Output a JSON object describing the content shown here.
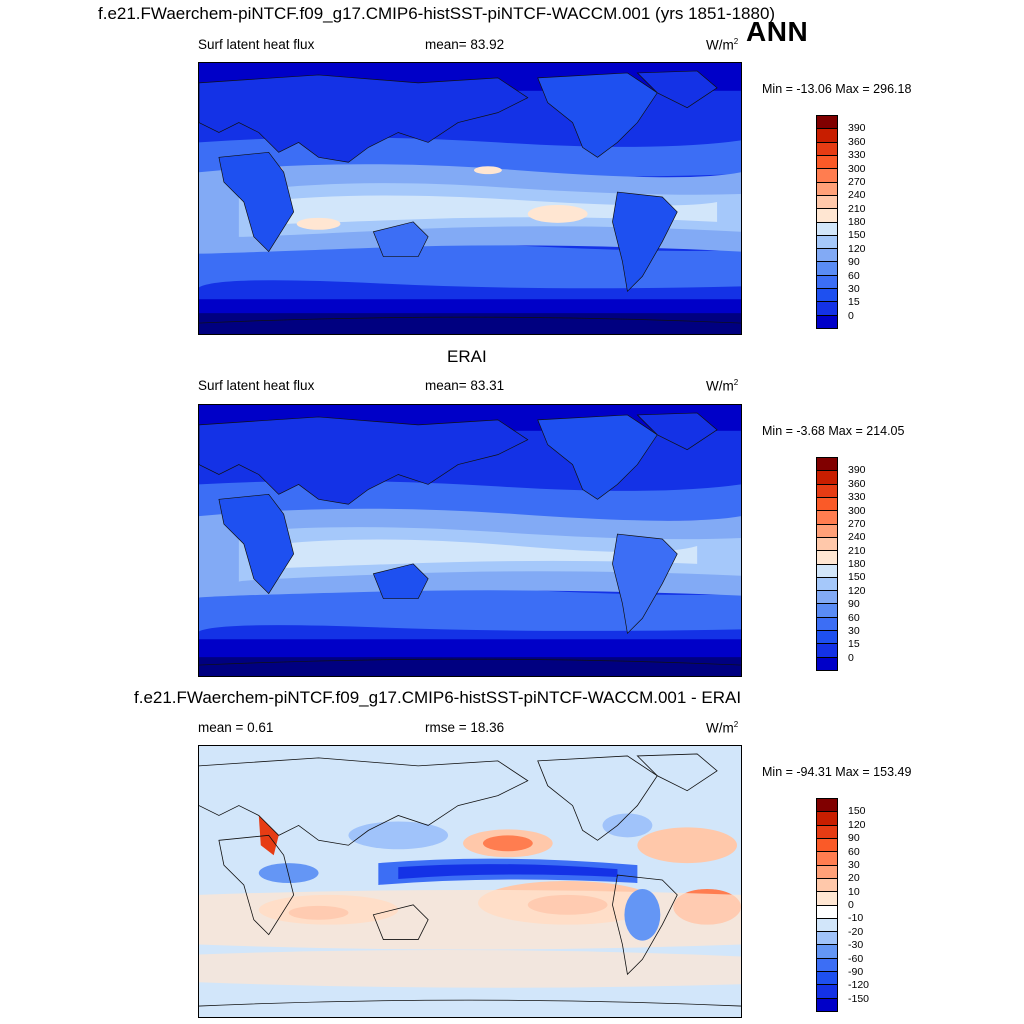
{
  "season": "ANN",
  "panels": [
    {
      "title": "f.e21.FWaerchem-piNTCF.f09_g17.CMIP6-histSST-piNTCF-WACCM.001 (yrs 1851-1880)",
      "left_label": "Surf latent heat flux",
      "stat_label": "mean=  83.92",
      "units_base": "W/m",
      "units_exp": "2",
      "minmax": "Min = -13.06 Max = 296.18",
      "colorbar": {
        "colors": [
          "#000080",
          "#0000c8",
          "#1432e6",
          "#1e50f0",
          "#3c6ef5",
          "#5a8cf5",
          "#82aaf5",
          "#a5c8fa",
          "#d2e6fa",
          "#ffe6d2",
          "#ffc8aa",
          "#ffa078",
          "#ff7d50",
          "#fa5a28",
          "#e63c14",
          "#c81e00",
          "#800000"
        ],
        "ticks": [
          "0",
          "15",
          "30",
          "60",
          "90",
          "120",
          "150",
          "180",
          "210",
          "240",
          "270",
          "300",
          "330",
          "360",
          "390"
        ]
      }
    },
    {
      "title": "ERAI",
      "left_label": "Surf latent heat flux",
      "stat_label": "mean=  83.31",
      "units_base": "W/m",
      "units_exp": "2",
      "minmax": "Min =  -3.68 Max = 214.05",
      "colorbar": {
        "colors": [
          "#000080",
          "#0000c8",
          "#1432e6",
          "#1e50f0",
          "#3c6ef5",
          "#5a8cf5",
          "#82aaf5",
          "#a5c8fa",
          "#d2e6fa",
          "#ffe6d2",
          "#ffc8aa",
          "#ffa078",
          "#ff7d50",
          "#fa5a28",
          "#e63c14",
          "#c81e00",
          "#800000"
        ],
        "ticks": [
          "0",
          "15",
          "30",
          "60",
          "90",
          "120",
          "150",
          "180",
          "210",
          "240",
          "270",
          "300",
          "330",
          "360",
          "390"
        ]
      }
    },
    {
      "title": "f.e21.FWaerchem-piNTCF.f09_g17.CMIP6-histSST-piNTCF-WACCM.001 - ERAI",
      "left_label": "mean =   0.61",
      "stat_label": "rmse =  18.36",
      "units_base": "W/m",
      "units_exp": "2",
      "minmax": "Min = -94.31 Max = 153.49",
      "colorbar": {
        "colors": [
          "#000080",
          "#0000c8",
          "#1432e6",
          "#1e50f0",
          "#3c6ef5",
          "#6496f5",
          "#a0c3fa",
          "#d2e6fa",
          "#ffffff",
          "#ffe6d2",
          "#ffc8aa",
          "#ffa078",
          "#ff7d50",
          "#fa5a28",
          "#e63c14",
          "#c81e00",
          "#800000"
        ],
        "ticks": [
          "-150",
          "-120",
          "-90",
          "-60",
          "-30",
          "-20",
          "-10",
          "0",
          "10",
          "20",
          "30",
          "60",
          "90",
          "120",
          "150"
        ]
      }
    }
  ]
}
